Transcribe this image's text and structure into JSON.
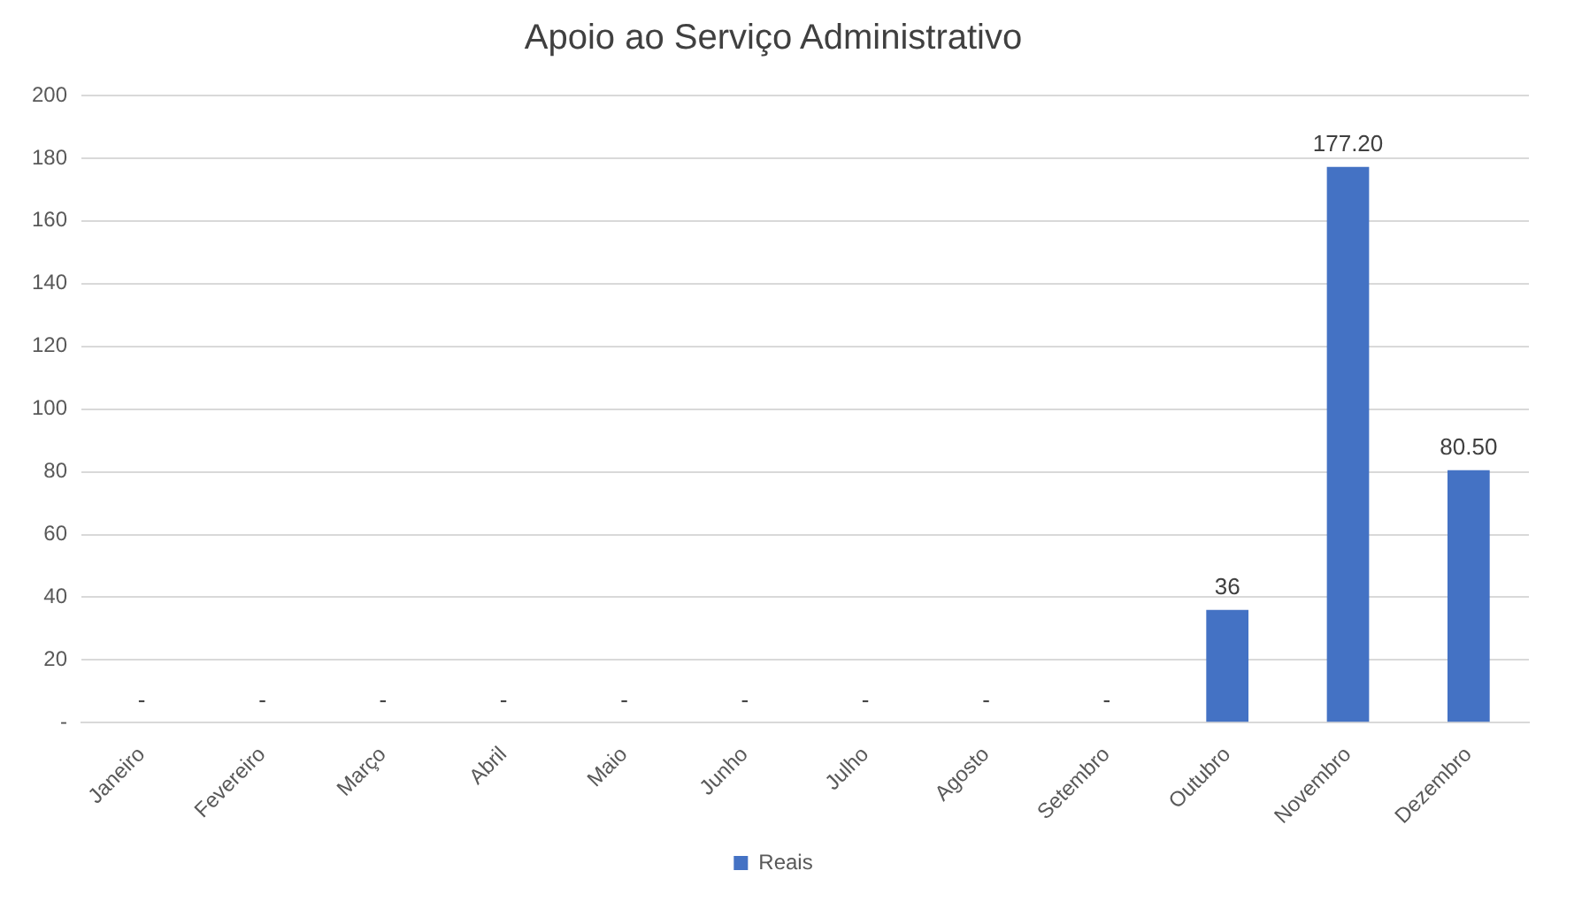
{
  "chart_data": {
    "type": "bar",
    "title": "Apoio ao Serviço Administrativo",
    "categories": [
      "Janeiro",
      "Fevereiro",
      "Março",
      "Abril",
      "Maio",
      "Junho",
      "Julho",
      "Agosto",
      "Setembro",
      "Outubro",
      "Novembro",
      "Dezembro"
    ],
    "series": [
      {
        "name": "Reais",
        "color": "#4472c4",
        "values": [
          0,
          0,
          0,
          0,
          0,
          0,
          0,
          0,
          0,
          36,
          177.2,
          80.5
        ],
        "value_labels": [
          "-",
          "-",
          "-",
          "-",
          "-",
          "-",
          "-",
          "-",
          "-",
          "36",
          "177.20",
          "80.50"
        ]
      }
    ],
    "ylim": [
      0,
      200
    ],
    "yticks": [
      {
        "value": 0,
        "label": "-"
      },
      20,
      40,
      60,
      80,
      100,
      120,
      140,
      160,
      180,
      200
    ],
    "grid": "y",
    "legend": "bottom"
  }
}
